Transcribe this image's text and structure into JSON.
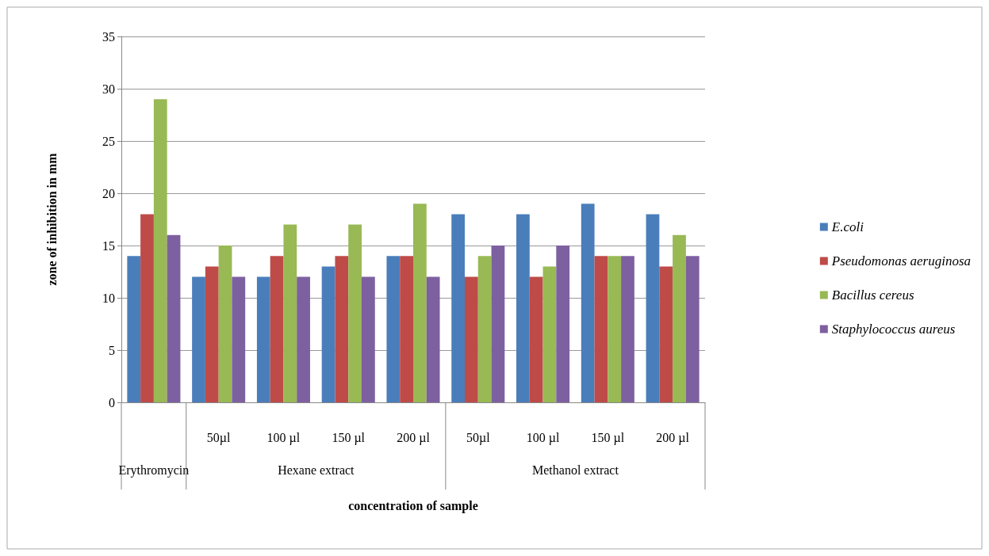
{
  "chart_data": {
    "type": "bar",
    "xlabel": "concentration of sample",
    "ylabel": "zone of inhibition in mm",
    "categories": [
      null,
      "50µl",
      "100 µl",
      "150 µl",
      "200 µl",
      "50µl",
      "100 µl",
      "150 µl",
      "200 µl"
    ],
    "annotations": [
      "Erythromycin",
      "Hexane extract",
      "Methanol extract"
    ],
    "series": [
      {
        "name": "E.coli",
        "color": "#4a7ebb",
        "values": [
          14,
          12,
          12,
          13,
          14,
          18,
          18,
          19,
          18
        ]
      },
      {
        "name": "Pseudomonas aeruginosa",
        "color": "#be4b48",
        "values": [
          18,
          13,
          14,
          14,
          14,
          12,
          12,
          14,
          13
        ]
      },
      {
        "name": "Bacillus cereus",
        "color": "#98b954",
        "values": [
          29,
          15,
          17,
          17,
          19,
          14,
          13,
          14,
          16
        ]
      },
      {
        "name": "Staphylococcus aureus",
        "color": "#7d60a0",
        "values": [
          16,
          12,
          12,
          12,
          12,
          15,
          15,
          14,
          14
        ]
      }
    ],
    "ylim": [
      0,
      35
    ],
    "yticks": [
      0,
      5,
      10,
      15,
      20,
      25,
      30,
      35
    ],
    "grid": "y",
    "legend": "right"
  }
}
